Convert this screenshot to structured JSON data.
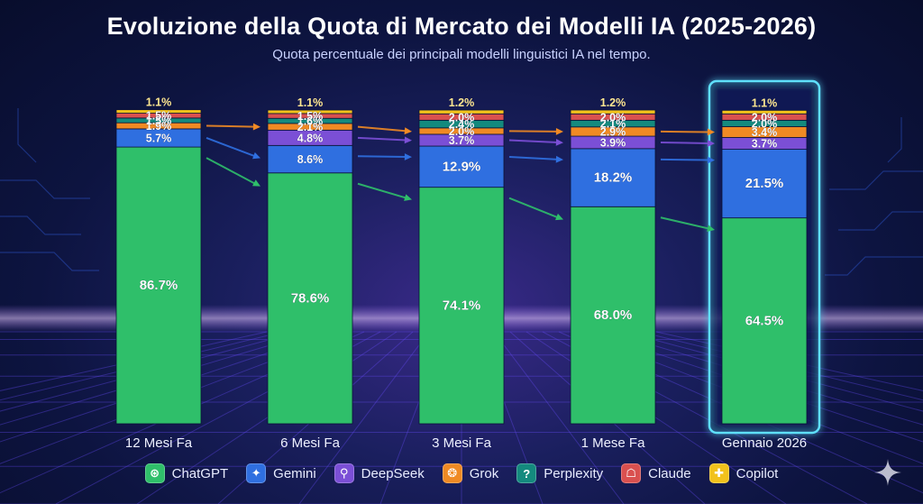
{
  "header": {
    "title": "Evoluzione della Quota di Mercato dei Modelli IA (2025-2026)",
    "subtitle": "Quota percentuale dei principali modelli linguistici IA nel tempo."
  },
  "legend": [
    {
      "name": "ChatGPT",
      "color": "#2fbf6a",
      "icon": "chatgpt-icon",
      "glyph": "⊛"
    },
    {
      "name": "Gemini",
      "color": "#2f6fe0",
      "icon": "gemini-sparkle-icon",
      "glyph": "✦"
    },
    {
      "name": "DeepSeek",
      "color": "#7b4fd6",
      "icon": "deepseek-search-icon",
      "glyph": "⚲"
    },
    {
      "name": "Grok",
      "color": "#f08a24",
      "icon": "grok-brain-icon",
      "glyph": "❂"
    },
    {
      "name": "Perplexity",
      "color": "#148a7e",
      "icon": "perplexity-question-icon",
      "glyph": "?"
    },
    {
      "name": "Claude",
      "color": "#d9504f",
      "icon": "claude-robot-icon",
      "glyph": "☖"
    },
    {
      "name": "Copilot",
      "color": "#f2c21b",
      "icon": "copilot-icon",
      "glyph": "✚"
    }
  ],
  "chart_data": {
    "type": "bar",
    "stacked": true,
    "title": "Evoluzione della Quota di Mercato dei Modelli IA (2025-2026)",
    "subtitle": "Quota percentuale dei principali modelli linguistici IA nel tempo.",
    "categories": [
      "12 Mesi Fa",
      "6 Mesi Fa",
      "3 Mesi Fa",
      "1 Mese Fa",
      "Gennaio 2026"
    ],
    "highlighted_category": "Gennaio 2026",
    "ylim": [
      0,
      100
    ],
    "legend_position": "bottom",
    "series": [
      {
        "name": "ChatGPT",
        "color": "#2fbf6a",
        "values": [
          86.7,
          78.6,
          74.1,
          68.0,
          64.5
        ]
      },
      {
        "name": "Gemini",
        "color": "#2f6fe0",
        "values": [
          5.7,
          8.6,
          12.9,
          18.2,
          21.5
        ]
      },
      {
        "name": "DeepSeek",
        "color": "#7b4fd6",
        "values": [
          null,
          4.8,
          3.7,
          3.9,
          3.7
        ]
      },
      {
        "name": "Grok",
        "color": "#f08a24",
        "values": [
          1.9,
          2.1,
          2.0,
          2.9,
          3.4
        ]
      },
      {
        "name": "Perplexity",
        "color": "#148a7e",
        "values": [
          1.5,
          1.6,
          2.4,
          2.1,
          2.0
        ]
      },
      {
        "name": "Claude",
        "color": "#d9504f",
        "values": [
          1.5,
          1.5,
          2.0,
          2.0,
          2.0
        ]
      },
      {
        "name": "Copilot",
        "color": "#f2c21b",
        "values": [
          1.1,
          1.1,
          1.2,
          1.2,
          1.1
        ]
      }
    ]
  }
}
